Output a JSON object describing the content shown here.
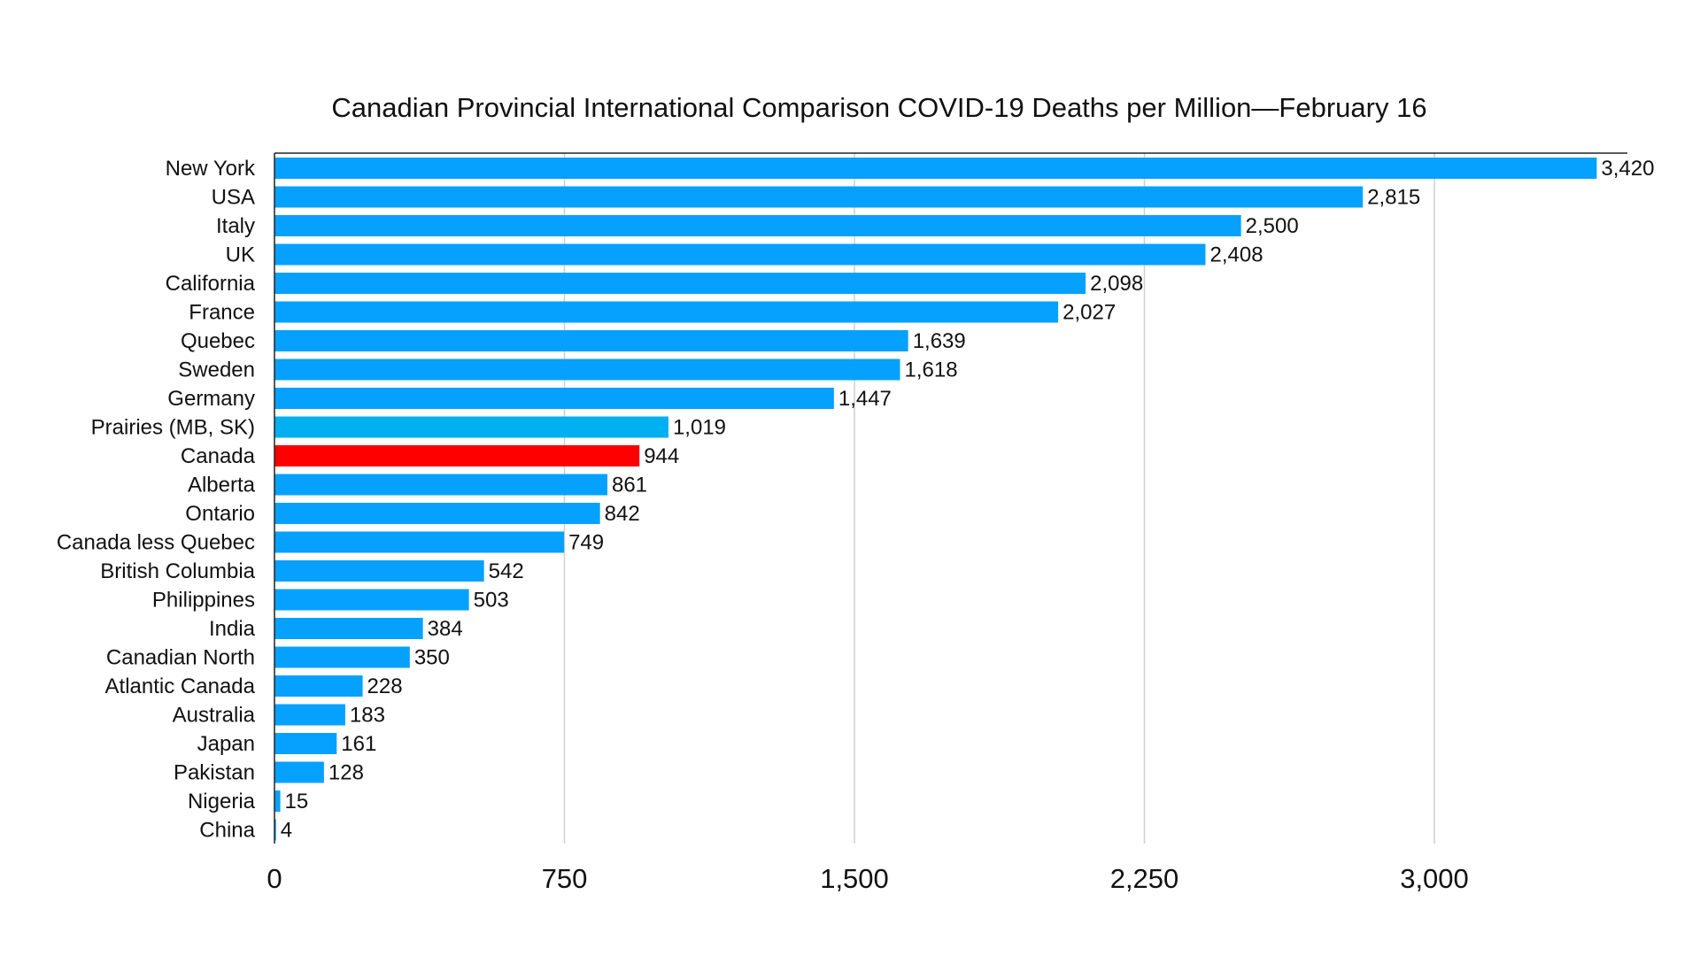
{
  "chart_data": {
    "type": "bar",
    "orientation": "horizontal",
    "title": "Canadian Provincial International Comparison COVID-19 Deaths per Million—February 16",
    "xlabel": "",
    "ylabel": "",
    "xlim": [
      0,
      3500
    ],
    "x_ticks": [
      0,
      750,
      1500,
      2250,
      3000
    ],
    "x_tick_labels": [
      "0",
      "750",
      "1,500",
      "2,250",
      "3,000"
    ],
    "grid": "vertical",
    "legend": "none",
    "categories": [
      "New York",
      "USA",
      "Italy",
      "UK",
      "California",
      "France",
      "Quebec",
      "Sweden",
      "Germany",
      "Prairies (MB, SK)",
      "Canada",
      "Alberta",
      "Ontario",
      "Canada less Quebec",
      "British Columbia",
      "Philippines",
      "India",
      "Canadian North",
      "Atlantic Canada",
      "Australia",
      "Japan",
      "Pakistan",
      "Nigeria",
      "China"
    ],
    "values": [
      3420,
      2815,
      2500,
      2408,
      2098,
      2027,
      1639,
      1618,
      1447,
      1019,
      944,
      861,
      842,
      749,
      542,
      503,
      384,
      350,
      228,
      183,
      161,
      128,
      15,
      4
    ],
    "value_labels": [
      "3,420",
      "2,815",
      "2,500",
      "2,408",
      "2,098",
      "2,027",
      "1,639",
      "1,618",
      "1,447",
      "1,019",
      "944",
      "861",
      "842",
      "749",
      "542",
      "503",
      "384",
      "350",
      "228",
      "183",
      "161",
      "128",
      "15",
      "4"
    ],
    "colors": {
      "default": "#06a1ff",
      "highlight": "#ff0000",
      "prairies": "#00b0f0"
    },
    "bar_colors": [
      "default",
      "default",
      "default",
      "default",
      "default",
      "default",
      "default",
      "default",
      "default",
      "prairies",
      "highlight",
      "default",
      "default",
      "default",
      "default",
      "default",
      "default",
      "default",
      "default",
      "default",
      "default",
      "default",
      "default",
      "default"
    ]
  }
}
